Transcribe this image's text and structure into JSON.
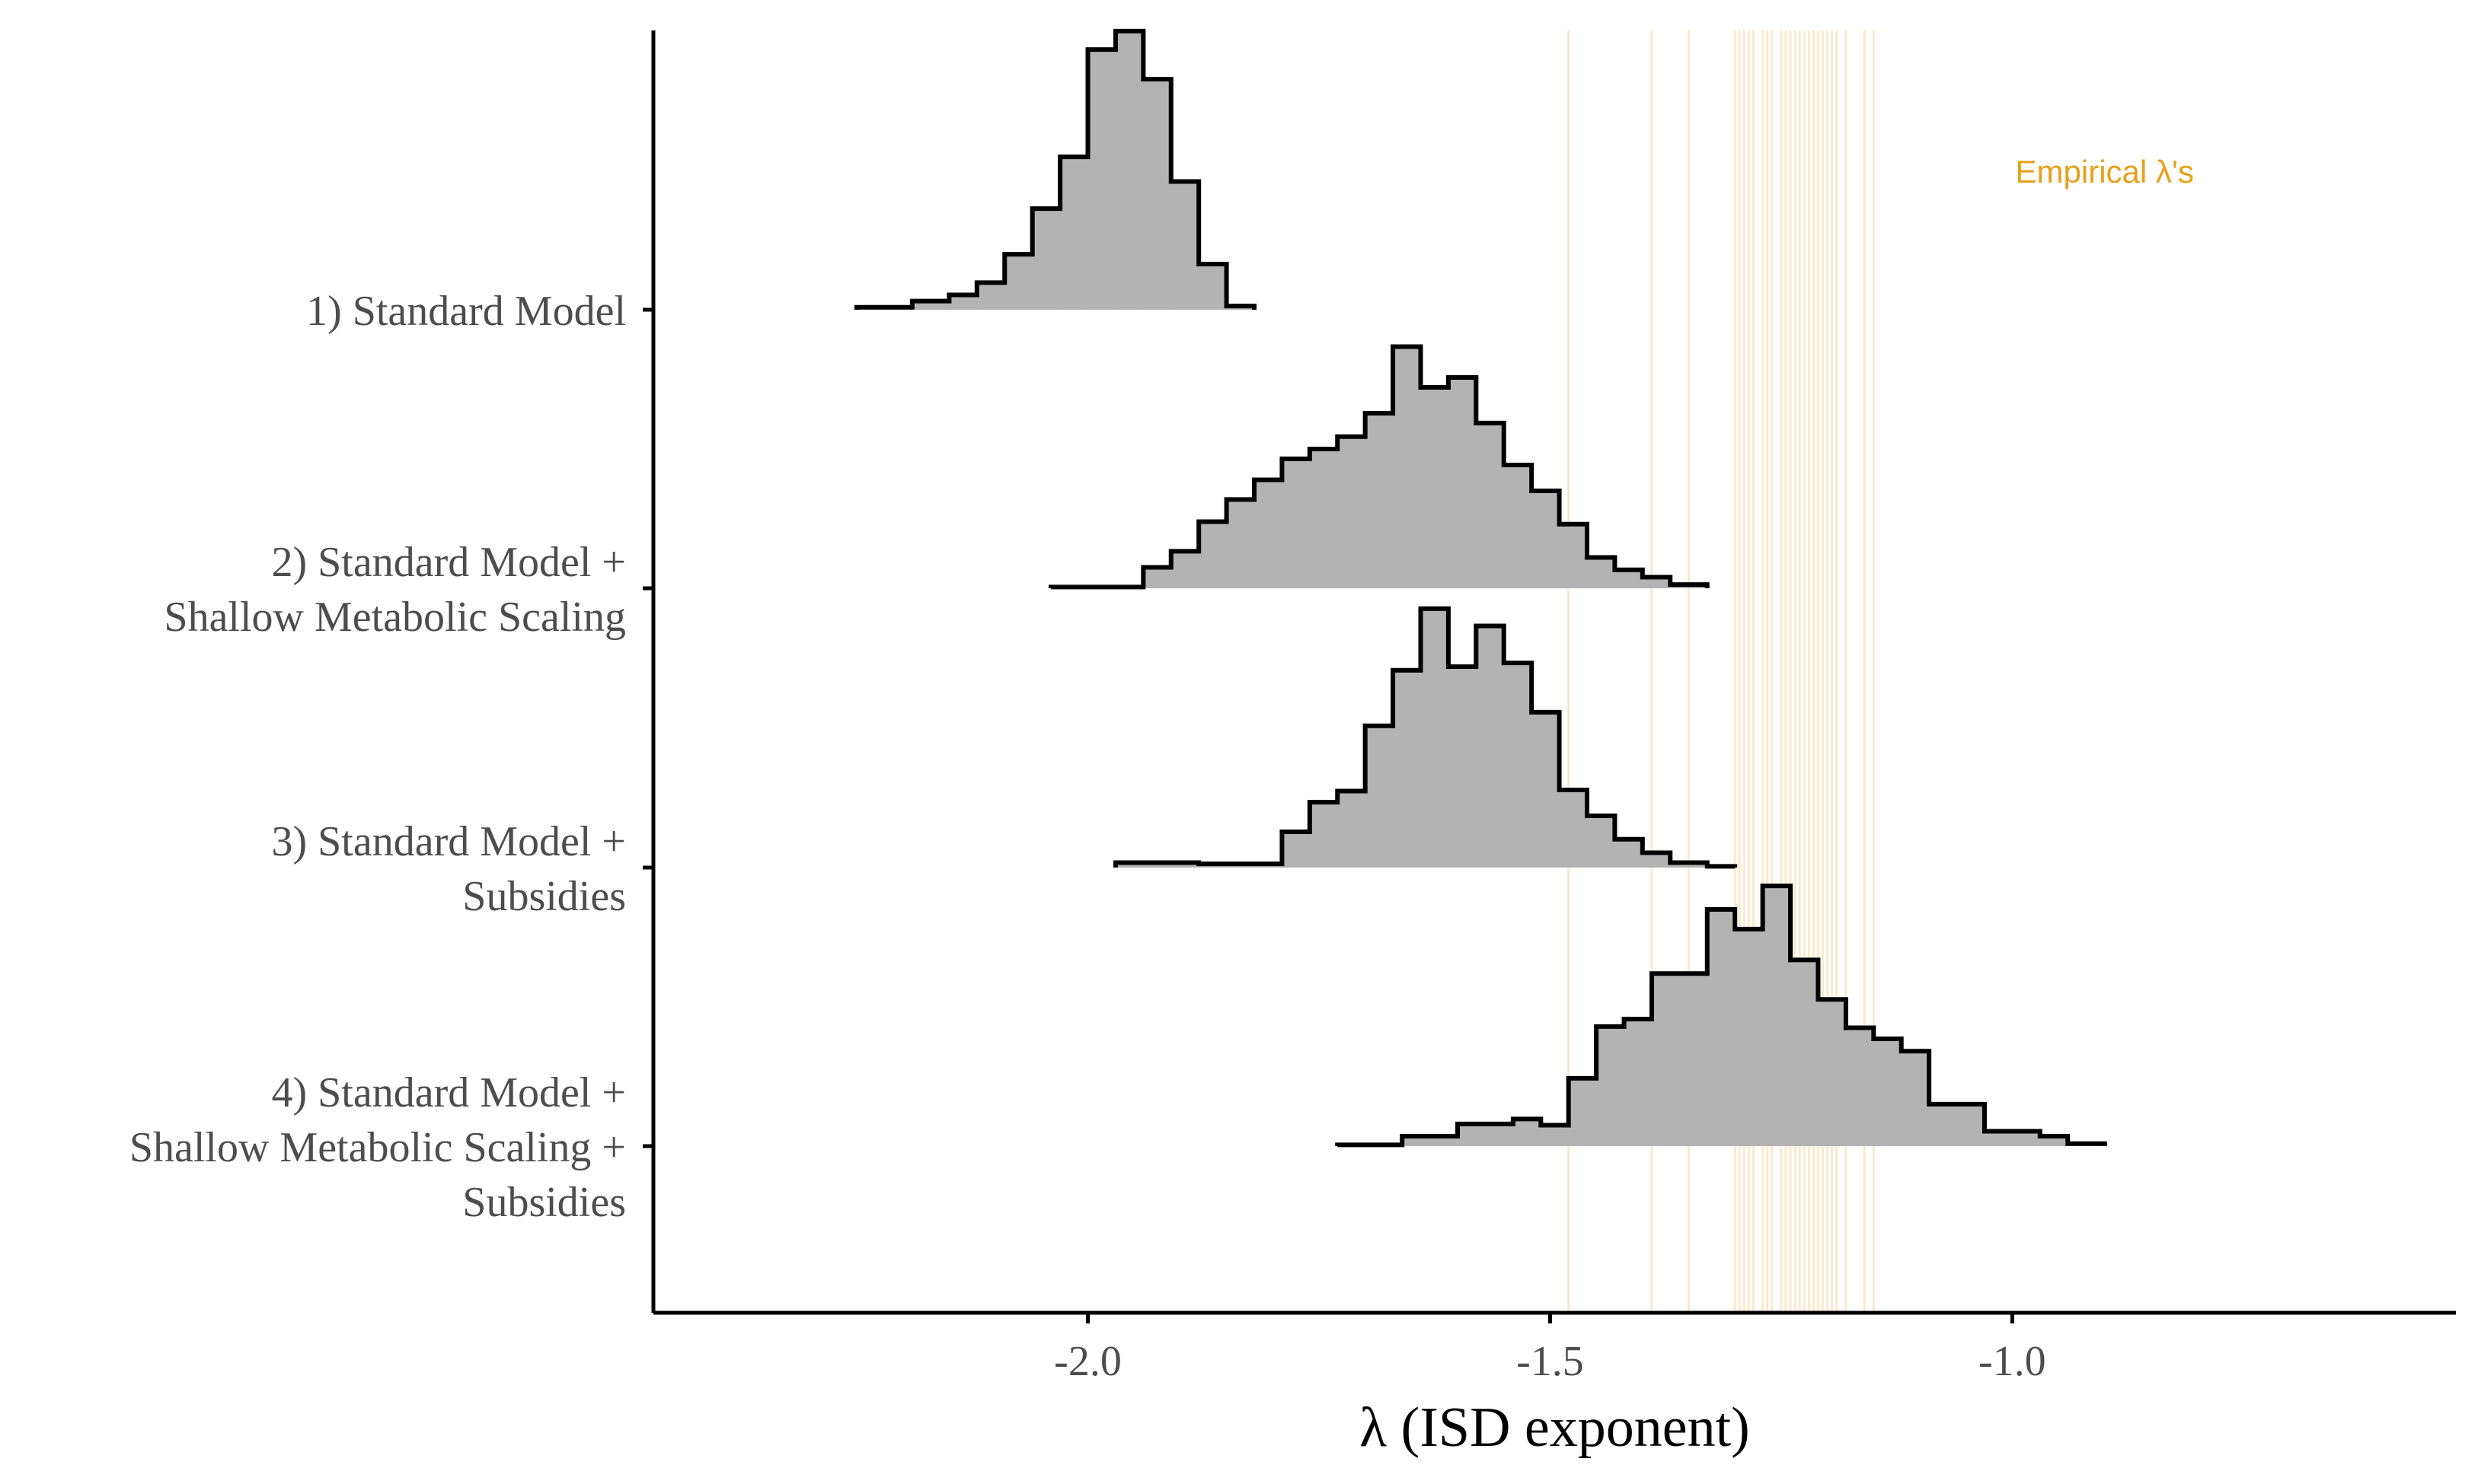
{
  "chart_data": {
    "type": "histogram-ridgeline",
    "xlabel": "λ (ISD exponent)",
    "ylabel": "",
    "xlim": [
      -2.47,
      -0.52
    ],
    "x_ticks": [
      {
        "value": -2.0,
        "label": "-2.0"
      },
      {
        "value": -1.5,
        "label": "-1.5"
      },
      {
        "value": -1.0,
        "label": "-1.0"
      }
    ],
    "grid": false,
    "colors": {
      "fill": "#b3b3b3",
      "outline": "#000000",
      "empirical": "#e6a01b"
    },
    "annotation": {
      "text": "Empirical λ's",
      "x": -0.9
    },
    "empirical_lambdas": [
      -1.48,
      -1.39,
      -1.35,
      -1.3,
      -1.295,
      -1.29,
      -1.285,
      -1.28,
      -1.27,
      -1.265,
      -1.26,
      -1.25,
      -1.245,
      -1.24,
      -1.235,
      -1.23,
      -1.225,
      -1.22,
      -1.215,
      -1.21,
      -1.205,
      -1.2,
      -1.195,
      -1.19,
      -1.18,
      -1.16,
      -1.15
    ],
    "series": [
      {
        "name": "1) Standard Model",
        "label_lines": [
          "1) Standard Model"
        ],
        "bin_edges": [
          -2.25,
          -2.19,
          -2.15,
          -2.12,
          -2.09,
          -2.06,
          -2.03,
          -2.0,
          -1.97,
          -1.94,
          -1.91,
          -1.88,
          -1.85,
          -1.82
        ],
        "counts": [
          0.2,
          0.7,
          1.2,
          2.2,
          4.5,
          8.2,
          12.4,
          21.1,
          22.6,
          18.7,
          10.4,
          3.7,
          0.3
        ]
      },
      {
        "name": "2) Standard Model + Shallow Metabolic Scaling",
        "label_lines": [
          "2) Standard Model +",
          "Shallow Metabolic Scaling"
        ],
        "bin_edges": [
          -2.04,
          -1.94,
          -1.91,
          -1.88,
          -1.85,
          -1.82,
          -1.79,
          -1.76,
          -1.73,
          -1.7,
          -1.67,
          -1.64,
          -1.61,
          -1.58,
          -1.55,
          -1.52,
          -1.49,
          -1.46,
          -1.43,
          -1.4,
          -1.37,
          -1.33
        ],
        "counts": [
          0.1,
          1.7,
          3.0,
          5.4,
          7.2,
          8.8,
          10.5,
          11.3,
          12.3,
          14.2,
          19.6,
          16.3,
          17.1,
          13.4,
          10.0,
          7.9,
          5.2,
          2.5,
          1.5,
          0.9,
          0.3
        ]
      },
      {
        "name": "3) Standard Model + Subsidies",
        "label_lines": [
          "3) Standard Model +",
          "Subsidies"
        ],
        "bin_edges": [
          -1.97,
          -1.88,
          -1.79,
          -1.76,
          -1.73,
          -1.7,
          -1.67,
          -1.64,
          -1.61,
          -1.58,
          -1.55,
          -1.52,
          -1.49,
          -1.46,
          -1.43,
          -1.4,
          -1.37,
          -1.33,
          -1.3
        ],
        "counts": [
          0.4,
          0.3,
          2.9,
          5.3,
          6.2,
          11.5,
          16.0,
          21.0,
          16.3,
          19.6,
          16.6,
          12.6,
          6.3,
          4.2,
          2.3,
          1.2,
          0.4,
          0.1
        ]
      },
      {
        "name": "4) Standard Model + Shallow Metabolic Scaling + Subsidies",
        "label_lines": [
          "4) Standard Model +",
          "Shallow Metabolic Scaling +",
          "Subsidies"
        ],
        "bin_edges": [
          -1.73,
          -1.66,
          -1.6,
          -1.54,
          -1.51,
          -1.48,
          -1.45,
          -1.42,
          -1.39,
          -1.36,
          -1.33,
          -1.3,
          -1.27,
          -1.24,
          -1.21,
          -1.18,
          -1.15,
          -1.12,
          -1.09,
          -1.03,
          -0.97,
          -0.94,
          -0.9
        ],
        "counts": [
          0.1,
          0.8,
          1.8,
          2.2,
          1.7,
          5.5,
          9.7,
          10.3,
          14.0,
          14.0,
          19.2,
          17.6,
          21.1,
          15.1,
          11.9,
          9.6,
          8.7,
          7.7,
          3.4,
          1.2,
          0.8,
          0.2
        ]
      }
    ]
  }
}
